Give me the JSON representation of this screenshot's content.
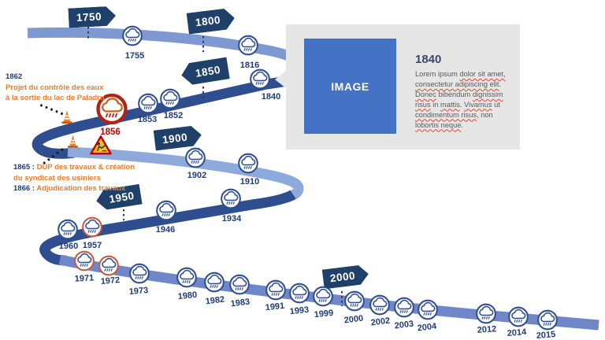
{
  "timeline": {
    "flags": [
      {
        "label": "1750"
      },
      {
        "label": "1800"
      },
      {
        "label": "1850"
      },
      {
        "label": "1900"
      },
      {
        "label": "1950"
      },
      {
        "label": "2000"
      }
    ],
    "events": [
      {
        "year": "1755",
        "variant": "normal"
      },
      {
        "year": "1816",
        "variant": "normal"
      },
      {
        "year": "1840",
        "variant": "normal"
      },
      {
        "year": "1852",
        "variant": "normal"
      },
      {
        "year": "1853",
        "variant": "normal"
      },
      {
        "year": "1856",
        "variant": "major"
      },
      {
        "year": "1902",
        "variant": "normal"
      },
      {
        "year": "1910",
        "variant": "normal"
      },
      {
        "year": "1934",
        "variant": "normal"
      },
      {
        "year": "1946",
        "variant": "normal"
      },
      {
        "year": "1957",
        "variant": "red"
      },
      {
        "year": "1960",
        "variant": "normal"
      },
      {
        "year": "1971",
        "variant": "red"
      },
      {
        "year": "1972",
        "variant": "red"
      },
      {
        "year": "1973",
        "variant": "normal"
      },
      {
        "year": "1980",
        "variant": "normal"
      },
      {
        "year": "1982",
        "variant": "normal"
      },
      {
        "year": "1983",
        "variant": "normal"
      },
      {
        "year": "1991",
        "variant": "normal"
      },
      {
        "year": "1993",
        "variant": "normal"
      },
      {
        "year": "1999",
        "variant": "normal"
      },
      {
        "year": "2000",
        "variant": "normal"
      },
      {
        "year": "2002",
        "variant": "normal"
      },
      {
        "year": "2003",
        "variant": "normal"
      },
      {
        "year": "2004",
        "variant": "normal"
      },
      {
        "year": "2012",
        "variant": "normal"
      },
      {
        "year": "2014",
        "variant": "normal"
      },
      {
        "year": "2015",
        "variant": "normal"
      }
    ],
    "annotations": {
      "a1862": {
        "year": "1862",
        "line1": "Projet du contrôle des eaux",
        "line2": "à la sortie du lac de Paladru"
      },
      "a1865": {
        "prefix1": "1865 :",
        "text1": "DUP des travaux & création",
        "line2": "du syndicat des usiniers",
        "prefix3": "1866 :",
        "text3": "Adjudication des travaux"
      }
    }
  },
  "panel": {
    "image_placeholder": "IMAGE",
    "title": "1840",
    "body": [
      [
        {
          "t": "Lorem ipsum ",
          "m": 0
        },
        {
          "t": "dolor sit amet,",
          "m": 1
        }
      ],
      [
        {
          "t": "consectetur adipiscing elit",
          "m": 1
        },
        {
          "t": ".",
          "m": 0
        }
      ],
      [
        {
          "t": "Donec",
          "m": 1
        },
        {
          "t": " bibendum ",
          "m": 0
        },
        {
          "t": "dignissim",
          "m": 1
        }
      ],
      [
        {
          "t": "risus",
          "m": 1
        },
        {
          "t": " in ",
          "m": 0
        },
        {
          "t": "mattis",
          "m": 1
        },
        {
          "t": ". ",
          "m": 0
        },
        {
          "t": "Vivamus",
          "m": 1
        },
        {
          "t": " ut",
          "m": 0
        }
      ],
      [
        {
          "t": "condimentum risus",
          "m": 1
        },
        {
          "t": ", non",
          "m": 0
        }
      ],
      [
        {
          "t": "lobortis neque",
          "m": 1
        },
        {
          "t": ".",
          "m": 0
        }
      ]
    ]
  },
  "colors": {
    "road_light_top": "#7E99D2",
    "road_light": "#8EA9DB",
    "road_dark": "#2F4E8F",
    "road_bottom": "#6F87C8",
    "flag_navy": "#1F4068",
    "year_label": "#1F3C78",
    "accent_orange": "#ED7D31",
    "major_red": "#B02418",
    "major_label": "#C00000",
    "red_ring": "#C65943",
    "panel_bg": "#E7E6E6",
    "image_blue": "#4472C4",
    "body_text": "#595959",
    "squiggle_red": "#E4462B"
  }
}
